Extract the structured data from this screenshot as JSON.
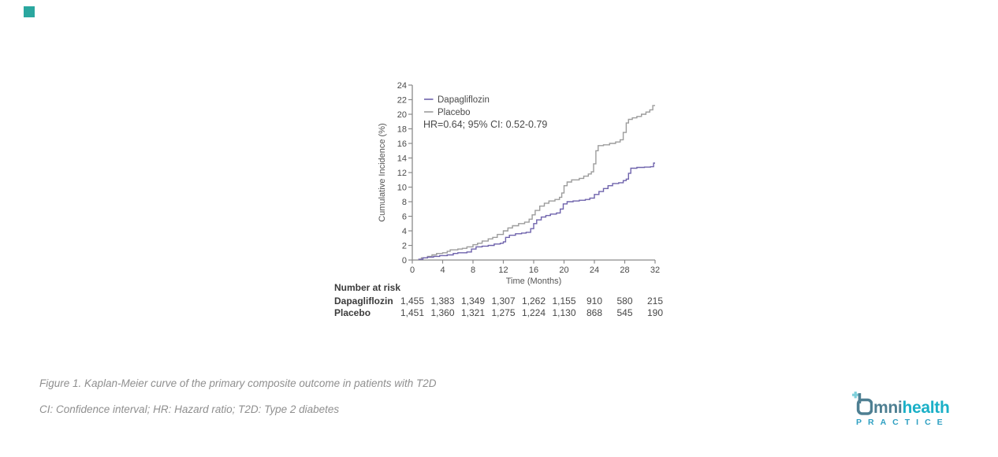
{
  "page": {
    "background": "#ffffff"
  },
  "accent_square": {
    "color": "#2aa79f"
  },
  "colors": {
    "axis": "#8a8a8a",
    "tick_text": "#4a4a4a",
    "label_text": "#555555",
    "annotation_text": "#4a4a4a",
    "bold_text": "#3b3b3b",
    "caption_text": "#8f8f8f"
  },
  "chart_data": {
    "type": "line",
    "step": true,
    "title": "",
    "xlabel": "Time (Months)",
    "ylabel": "Cumulative Incidence (%)",
    "xlim": [
      0,
      32
    ],
    "ylim": [
      0,
      24
    ],
    "xticks": [
      0,
      4,
      8,
      12,
      16,
      20,
      24,
      28,
      32
    ],
    "yticks": [
      0,
      2,
      4,
      6,
      8,
      10,
      12,
      14,
      16,
      18,
      20,
      22,
      24
    ],
    "grid": false,
    "legend_position": "top-left",
    "annotation": "HR=0.64; 95% CI: 0.52-0.79",
    "series": [
      {
        "name": "Dapagliflozin",
        "color": "#6f63ac",
        "points": [
          [
            0.8,
            0.1
          ],
          [
            1.4,
            0.3
          ],
          [
            2,
            0.4
          ],
          [
            2.8,
            0.5
          ],
          [
            3.6,
            0.6
          ],
          [
            4.6,
            0.7
          ],
          [
            5.4,
            0.9
          ],
          [
            6,
            1.0
          ],
          [
            7.2,
            1.1
          ],
          [
            7.8,
            1.5
          ],
          [
            8.4,
            1.8
          ],
          [
            9.2,
            1.9
          ],
          [
            10,
            2.0
          ],
          [
            10.8,
            2.2
          ],
          [
            11.6,
            2.3
          ],
          [
            12,
            2.5
          ],
          [
            12.3,
            3.1
          ],
          [
            12.8,
            3.4
          ],
          [
            13.6,
            3.6
          ],
          [
            14.4,
            3.7
          ],
          [
            15,
            3.8
          ],
          [
            15.6,
            4.3
          ],
          [
            16,
            5.0
          ],
          [
            16.4,
            5.5
          ],
          [
            17,
            5.9
          ],
          [
            17.6,
            6.1
          ],
          [
            18.2,
            6.3
          ],
          [
            19,
            6.45
          ],
          [
            19.5,
            7.0
          ],
          [
            19.9,
            7.7
          ],
          [
            20.4,
            8.0
          ],
          [
            21.2,
            8.1
          ],
          [
            22,
            8.2
          ],
          [
            22.8,
            8.3
          ],
          [
            23.4,
            8.5
          ],
          [
            24,
            9.0
          ],
          [
            24.6,
            9.4
          ],
          [
            25.2,
            9.8
          ],
          [
            25.8,
            10.2
          ],
          [
            26.4,
            10.5
          ],
          [
            27.2,
            10.6
          ],
          [
            27.8,
            10.9
          ],
          [
            28.2,
            11.1
          ],
          [
            28.5,
            11.9
          ],
          [
            28.8,
            12.6
          ],
          [
            29.6,
            12.7
          ],
          [
            30.6,
            12.75
          ],
          [
            31.4,
            12.8
          ],
          [
            31.8,
            13.3
          ],
          [
            32,
            13.3
          ]
        ]
      },
      {
        "name": "Placebo",
        "color": "#9c9c9c",
        "points": [
          [
            0.8,
            0.1
          ],
          [
            1.2,
            0.3
          ],
          [
            2,
            0.5
          ],
          [
            2.6,
            0.7
          ],
          [
            3.2,
            0.9
          ],
          [
            4,
            1.0
          ],
          [
            4.6,
            1.2
          ],
          [
            5,
            1.4
          ],
          [
            6,
            1.5
          ],
          [
            6.6,
            1.6
          ],
          [
            7.2,
            1.8
          ],
          [
            8,
            2.1
          ],
          [
            8.6,
            2.3
          ],
          [
            9.2,
            2.6
          ],
          [
            10,
            2.9
          ],
          [
            10.6,
            3.1
          ],
          [
            11.2,
            3.5
          ],
          [
            12,
            4.0
          ],
          [
            12.6,
            4.4
          ],
          [
            13.2,
            4.7
          ],
          [
            14,
            5.0
          ],
          [
            14.8,
            5.2
          ],
          [
            15.4,
            5.6
          ],
          [
            15.8,
            6.2
          ],
          [
            16.2,
            6.8
          ],
          [
            16.8,
            7.4
          ],
          [
            17.4,
            7.8
          ],
          [
            18,
            8.1
          ],
          [
            18.8,
            8.3
          ],
          [
            19.4,
            8.6
          ],
          [
            19.7,
            9.2
          ],
          [
            20,
            10.2
          ],
          [
            20.4,
            10.7
          ],
          [
            21,
            11.0
          ],
          [
            22,
            11.2
          ],
          [
            22.6,
            11.5
          ],
          [
            23.2,
            11.8
          ],
          [
            23.6,
            12.1
          ],
          [
            23.9,
            13.2
          ],
          [
            24.2,
            15.0
          ],
          [
            24.5,
            15.7
          ],
          [
            25.2,
            15.8
          ],
          [
            26,
            16.0
          ],
          [
            26.8,
            16.2
          ],
          [
            27.4,
            16.5
          ],
          [
            27.8,
            17.5
          ],
          [
            28.2,
            18.8
          ],
          [
            28.5,
            19.3
          ],
          [
            29,
            19.5
          ],
          [
            29.6,
            19.7
          ],
          [
            30.2,
            20.0
          ],
          [
            30.8,
            20.3
          ],
          [
            31.3,
            20.6
          ],
          [
            31.7,
            21.2
          ],
          [
            32,
            21.2
          ]
        ]
      }
    ]
  },
  "risk_table": {
    "header": "Number at risk",
    "time_points": [
      0,
      4,
      8,
      12,
      16,
      20,
      24,
      28,
      32
    ],
    "rows": [
      {
        "label": "Dapagliflozin",
        "values": [
          "1,455",
          "1,383",
          "1,349",
          "1,307",
          "1,262",
          "1,155",
          "910",
          "580",
          "215"
        ]
      },
      {
        "label": "Placebo",
        "values": [
          "1,451",
          "1,360",
          "1,321",
          "1,275",
          "1,224",
          "1,130",
          "868",
          "545",
          "190"
        ]
      }
    ]
  },
  "captions": {
    "figure": "Figure 1. Kaplan-Meier curve of the primary composite outcome in patients with T2D",
    "abbreviations": "CI: Confidence interval; HR: Hazard ratio; T2D: Type 2 diabetes"
  },
  "logo": {
    "brand_rest": "mni",
    "brand_bold": "health",
    "tagline": "PRACTICE",
    "colors": {
      "slate": "#4e7f92",
      "cyan": "#1bb0c7",
      "light_cyan": "#7fd0db",
      "tagline": "#2fa0c2"
    }
  }
}
